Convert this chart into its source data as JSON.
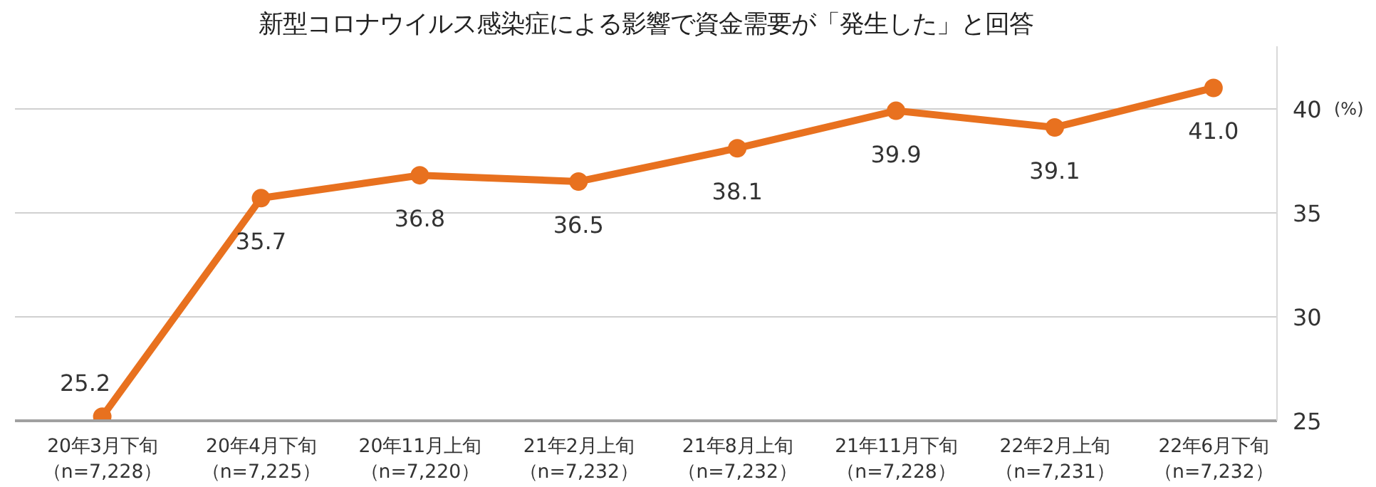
{
  "chart_data": {
    "type": "line",
    "title": "新型コロナウイルス感染症による影響で資金需要が「発生した」と回答",
    "ylabel": "(%)",
    "categories": [
      "20年3月下旬（n=7,228）",
      "20年4月下旬（n=7,225）",
      "20年11月上旬（n=7,220）",
      "21年2月上旬（n=7,232）",
      "21年8月上旬（n=7,232）",
      "21年11月下旬（n=7,228）",
      "22年2月上旬（n=7,231）",
      "22年6月下旬（n=7,232）"
    ],
    "series": [
      {
        "color": "#e8711f",
        "values": [
          25.2,
          35.7,
          36.8,
          36.5,
          38.1,
          39.9,
          39.1,
          41.0
        ],
        "value_labels": [
          "25.2",
          "35.7",
          "36.8",
          "36.5",
          "38.1",
          "39.9",
          "39.1",
          "41.0"
        ]
      }
    ],
    "ylim": [
      25,
      43
    ],
    "yticks": [
      25,
      30,
      35,
      40
    ],
    "grid": "y",
    "marker": "circle",
    "line_style": "solid"
  }
}
